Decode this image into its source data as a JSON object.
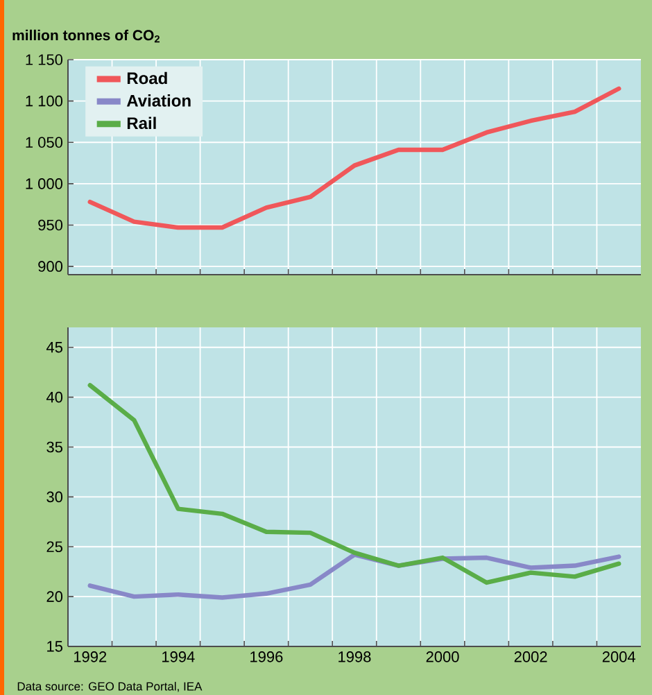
{
  "chart_data": [
    {
      "type": "line",
      "ylabel": "million tonnes of CO$_{2}$",
      "x": [
        1992,
        1993,
        1994,
        1995,
        1996,
        1997,
        1998,
        1999,
        2000,
        2001,
        2002,
        2003,
        2004
      ],
      "series": [
        {
          "name": "Road",
          "color": "#f0575a",
          "values": [
            978,
            954,
            947,
            947,
            971,
            984,
            1022,
            1041,
            1041,
            1062,
            1076,
            1087,
            1115
          ]
        }
      ],
      "xlim": [
        1991.5,
        2004.5
      ],
      "ylim": [
        890,
        1150
      ],
      "xticks": [
        {
          "value": 1992.5,
          "label": null
        },
        {
          "value": 1993.5,
          "label": null
        },
        {
          "value": 1994.5,
          "label": null
        },
        {
          "value": 1995.5,
          "label": null
        },
        {
          "value": 1996.5,
          "label": null
        },
        {
          "value": 1997.5,
          "label": null
        },
        {
          "value": 1998.5,
          "label": null
        },
        {
          "value": 1999.5,
          "label": null
        },
        {
          "value": 2000.5,
          "label": null
        },
        {
          "value": 2001.5,
          "label": null
        },
        {
          "value": 2002.5,
          "label": null
        },
        {
          "value": 2003.5,
          "label": null
        }
      ],
      "yticks": [
        900,
        950,
        {
          "value": 1000,
          "label": "1 000"
        },
        {
          "value": 1050,
          "label": "1 050"
        },
        {
          "value": 1100,
          "label": "1 100"
        },
        {
          "value": 1150,
          "label": "1 150"
        }
      ],
      "tick_labels": "y",
      "grid": true,
      "legend": "top left"
    },
    {
      "type": "line",
      "x": [
        1992,
        1993,
        1994,
        1995,
        1996,
        1997,
        1998,
        1999,
        2000,
        2001,
        2002,
        2003,
        2004
      ],
      "series": [
        {
          "name": "Aviation",
          "color": "#8888c8",
          "values": [
            21.1,
            20.0,
            20.2,
            19.9,
            20.3,
            21.2,
            24.2,
            23.1,
            23.8,
            23.9,
            22.9,
            23.1,
            24.0
          ]
        },
        {
          "name": "Rail",
          "color": "#5aad48",
          "values": [
            41.2,
            37.7,
            28.8,
            28.3,
            26.5,
            26.4,
            24.4,
            23.1,
            23.9,
            21.4,
            22.4,
            22.0,
            23.3
          ]
        }
      ],
      "xlim": [
        1991.5,
        2004.5
      ],
      "ylim": [
        15,
        47
      ],
      "xticks": [
        1992,
        {
          "value": 1992.5,
          "label": null
        },
        {
          "value": 1993.5,
          "label": null
        },
        1994,
        {
          "value": 1994.5,
          "label": null
        },
        {
          "value": 1995.5,
          "label": null
        },
        1996,
        {
          "value": 1996.5,
          "label": null
        },
        {
          "value": 1997.5,
          "label": null
        },
        1998,
        {
          "value": 1998.5,
          "label": null
        },
        {
          "value": 1999.5,
          "label": null
        },
        2000,
        {
          "value": 2000.5,
          "label": null
        },
        {
          "value": 2001.5,
          "label": null
        },
        2002,
        {
          "value": 2002.5,
          "label": null
        },
        {
          "value": 2003.5,
          "label": null
        },
        2004
      ],
      "yticks": [
        15,
        20,
        25,
        30,
        35,
        40,
        45
      ],
      "grid": true,
      "legend": "top left",
      "annotations": [
        "Data source: GEO Data Portal, IEA"
      ]
    }
  ]
}
